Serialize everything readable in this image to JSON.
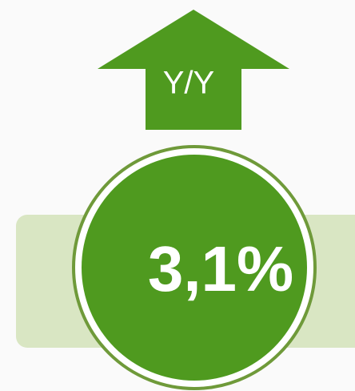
{
  "arrow": {
    "label": "Y/Y"
  },
  "badge": {
    "value": "3,1%"
  }
}
